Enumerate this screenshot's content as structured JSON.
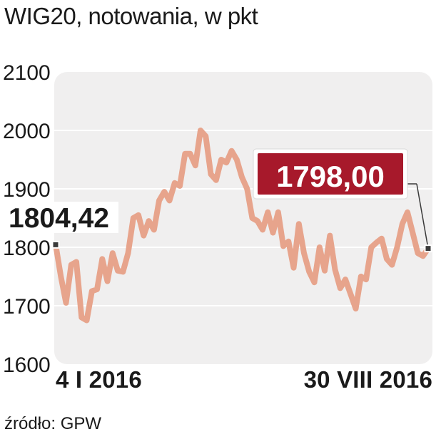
{
  "title": "WIG20, notowania, w pkt",
  "source": "źródło: GPW",
  "colors": {
    "plot_background": "#f0efef",
    "line": "#e7a48c",
    "gridline": "#ffffff",
    "callout_end_fill": "#a7192b",
    "text": "#1a1a1a",
    "marker": "#3a3a3a"
  },
  "chart_data": {
    "type": "line",
    "ylim": [
      1600,
      2100
    ],
    "yticks": [
      "1600",
      "1700",
      "1800",
      "1900",
      "2000",
      "2100"
    ],
    "x_start_label": "4 I 2016",
    "x_end_label": "30 VIII 2016",
    "start_value_label": "1804,42",
    "end_value_label": "1798,00",
    "grid": true,
    "series": [
      {
        "values": [
          1804.42,
          1750,
          1705,
          1770,
          1775,
          1680,
          1675,
          1725,
          1728,
          1780,
          1742,
          1790,
          1760,
          1758,
          1790,
          1850,
          1855,
          1820,
          1845,
          1830,
          1880,
          1895,
          1880,
          1910,
          1905,
          1960,
          1960,
          1940,
          2000,
          1990,
          1925,
          1915,
          1950,
          1945,
          1965,
          1950,
          1920,
          1900,
          1850,
          1845,
          1830,
          1860,
          1825,
          1860,
          1802,
          1810,
          1765,
          1840,
          1790,
          1758,
          1740,
          1800,
          1760,
          1820,
          1762,
          1730,
          1745,
          1720,
          1695,
          1750,
          1745,
          1800,
          1808,
          1815,
          1780,
          1770,
          1800,
          1840,
          1860,
          1825,
          1790,
          1785,
          1798.0
        ]
      }
    ]
  }
}
